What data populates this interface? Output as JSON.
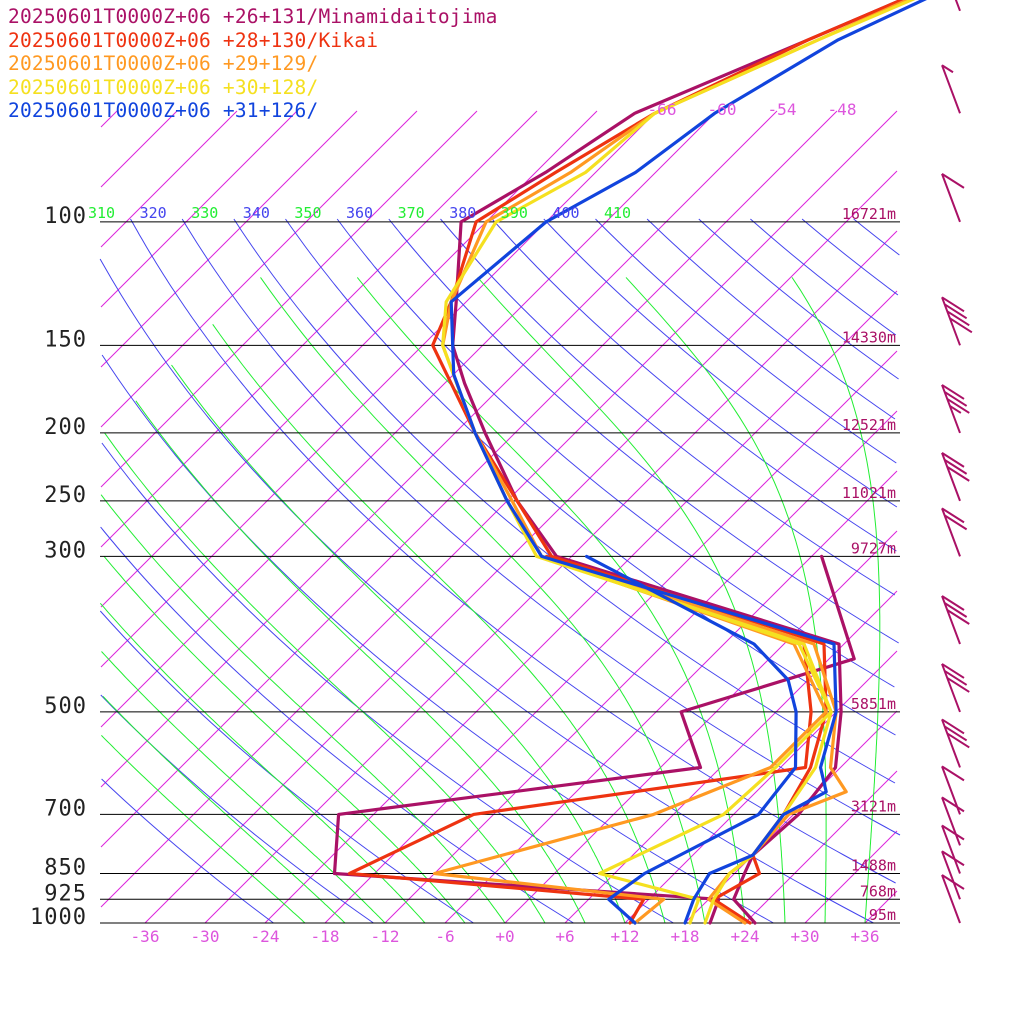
{
  "chart_data": {
    "type": "line",
    "legend_position": "top-left",
    "pressure_levels": [
      {
        "p": 100,
        "label": "100",
        "height": "16721m"
      },
      {
        "p": 150,
        "label": "150",
        "height": "14330m"
      },
      {
        "p": 200,
        "label": "200",
        "height": "12521m"
      },
      {
        "p": 250,
        "label": "250",
        "height": "11021m"
      },
      {
        "p": 300,
        "label": "300",
        "height": "9727m"
      },
      {
        "p": 500,
        "label": "500",
        "height": "5851m"
      },
      {
        "p": 700,
        "label": "700",
        "height": "3121m"
      },
      {
        "p": 850,
        "label": "850",
        "height": "1488m"
      },
      {
        "p": 925,
        "label": "925",
        "height": "768m"
      },
      {
        "p": 1000,
        "label": "1000",
        "height": "95m"
      }
    ],
    "temperature_ticks": [
      {
        "t": -36,
        "label": "-36"
      },
      {
        "t": -30,
        "label": "-30"
      },
      {
        "t": -24,
        "label": "-24"
      },
      {
        "t": -18,
        "label": "-18"
      },
      {
        "t": -12,
        "label": "-12"
      },
      {
        "t": -6,
        "label": "-6"
      },
      {
        "t": 0,
        "label": "+0"
      },
      {
        "t": 6,
        "label": "+6"
      },
      {
        "t": 12,
        "label": "+12"
      },
      {
        "t": 18,
        "label": "+18"
      },
      {
        "t": 24,
        "label": "+24"
      },
      {
        "t": 30,
        "label": "+30"
      },
      {
        "t": 36,
        "label": "+36"
      }
    ],
    "isotherm_top_labels": [
      {
        "t": -66,
        "label": "-66"
      },
      {
        "t": -60,
        "label": "-60"
      },
      {
        "t": -54,
        "label": "-54"
      },
      {
        "t": -48,
        "label": "-48"
      }
    ],
    "potential_temperature_labels": [
      {
        "theta": 310,
        "label": "310"
      },
      {
        "theta": 320,
        "label": "320"
      },
      {
        "theta": 330,
        "label": "330"
      },
      {
        "theta": 340,
        "label": "340"
      },
      {
        "theta": 350,
        "label": "350"
      },
      {
        "theta": 360,
        "label": "360"
      },
      {
        "theta": 370,
        "label": "370"
      },
      {
        "theta": 380,
        "label": "380"
      },
      {
        "theta": 390,
        "label": "390"
      },
      {
        "theta": 400,
        "label": "400"
      },
      {
        "theta": 410,
        "label": "410"
      }
    ],
    "series": [
      {
        "name": "20250601T0000Z+06 +26+131/Minamidaitojima",
        "color": "#aa1166",
        "temperature": [
          [
            1000,
            25.0
          ],
          [
            925,
            20.5
          ],
          [
            850,
            19.0
          ],
          [
            800,
            18.0
          ],
          [
            700,
            18.5
          ],
          [
            600,
            17.5
          ],
          [
            500,
            12.5
          ],
          [
            400,
            5.5
          ],
          [
            300,
            -31.5
          ],
          [
            250,
            -41.0
          ],
          [
            200,
            -51.0
          ],
          [
            170,
            -58.0
          ],
          [
            150,
            -63.0
          ],
          [
            130,
            -67.0
          ],
          [
            100,
            -74.5
          ],
          [
            85,
            -71.0
          ],
          [
            70,
            -68.0
          ],
          [
            55,
            -58.0
          ],
          [
            40,
            -45.0
          ]
        ],
        "dewpoint": [
          [
            1000,
            20.5
          ],
          [
            925,
            19.0
          ],
          [
            850,
            -22.0
          ],
          [
            700,
            -27.5
          ],
          [
            600,
            4.0
          ],
          [
            500,
            -3.5
          ],
          [
            420,
            8.5
          ],
          [
            300,
            -5.0
          ]
        ]
      },
      {
        "name": "20250601T0000Z+06 +28+130/Kikai",
        "color": "#ee3311",
        "temperature": [
          [
            1000,
            24.5
          ],
          [
            925,
            18.5
          ],
          [
            850,
            20.5
          ],
          [
            800,
            18.0
          ],
          [
            700,
            17.0
          ],
          [
            600,
            15.0
          ],
          [
            500,
            11.0
          ],
          [
            400,
            4.0
          ],
          [
            300,
            -32.0
          ],
          [
            250,
            -41.0
          ],
          [
            200,
            -52.0
          ],
          [
            150,
            -65.0
          ],
          [
            130,
            -67.5
          ],
          [
            100,
            -73.0
          ],
          [
            85,
            -70.0
          ],
          [
            70,
            -66.0
          ],
          [
            55,
            -58.0
          ],
          [
            40,
            -45.0
          ]
        ],
        "dewpoint": [
          [
            1000,
            12.5
          ],
          [
            925,
            11.5
          ],
          [
            850,
            -20.5
          ],
          [
            700,
            -14.0
          ],
          [
            600,
            14.5
          ],
          [
            500,
            9.5
          ],
          [
            400,
            2.0
          ],
          [
            300,
            -32.5
          ]
        ]
      },
      {
        "name": "20250601T0000Z+06 +29+129/",
        "color": "#ff9922",
        "temperature": [
          [
            1000,
            24.0
          ],
          [
            925,
            18.0
          ],
          [
            850,
            17.5
          ],
          [
            800,
            18.0
          ],
          [
            700,
            17.5
          ],
          [
            650,
            21.0
          ],
          [
            600,
            17.0
          ],
          [
            500,
            12.0
          ],
          [
            400,
            3.0
          ],
          [
            300,
            -33.0
          ],
          [
            250,
            -41.5
          ],
          [
            200,
            -52.0
          ],
          [
            150,
            -64.0
          ],
          [
            130,
            -67.5
          ],
          [
            100,
            -72.0
          ],
          [
            85,
            -68.5
          ],
          [
            70,
            -66.0
          ],
          [
            55,
            -57.0
          ],
          [
            40,
            -45.0
          ]
        ],
        "dewpoint": [
          [
            1000,
            13.0
          ],
          [
            925,
            13.5
          ],
          [
            850,
            -12.0
          ],
          [
            700,
            4.0
          ],
          [
            600,
            11.0
          ],
          [
            500,
            11.0
          ],
          [
            400,
            1.0
          ],
          [
            300,
            -33.0
          ]
        ]
      },
      {
        "name": "20250601T0000Z+06 +30+128/",
        "color": "#f5e020",
        "temperature": [
          [
            1000,
            20.0
          ],
          [
            925,
            18.5
          ],
          [
            850,
            17.5
          ],
          [
            800,
            18.0
          ],
          [
            700,
            17.0
          ],
          [
            600,
            15.5
          ],
          [
            500,
            11.5
          ],
          [
            400,
            2.0
          ],
          [
            300,
            -33.5
          ],
          [
            250,
            -42.0
          ],
          [
            200,
            -52.0
          ],
          [
            150,
            -64.0
          ],
          [
            130,
            -68.0
          ],
          [
            100,
            -71.0
          ],
          [
            85,
            -67.0
          ],
          [
            70,
            -66.0
          ],
          [
            55,
            -57.0
          ],
          [
            40,
            -44.0
          ]
        ],
        "dewpoint": [
          [
            1000,
            18.5
          ],
          [
            925,
            17.0
          ],
          [
            850,
            4.5
          ],
          [
            700,
            11.0
          ],
          [
            600,
            11.5
          ],
          [
            500,
            11.5
          ],
          [
            400,
            1.5
          ],
          [
            300,
            -33.0
          ]
        ]
      },
      {
        "name": "20250601T0000Z+06 +31+126/",
        "color": "#1144dd",
        "temperature": [
          [
            1000,
            18.0
          ],
          [
            925,
            16.5
          ],
          [
            850,
            15.5
          ],
          [
            800,
            18.0
          ],
          [
            700,
            17.0
          ],
          [
            650,
            19.0
          ],
          [
            600,
            16.0
          ],
          [
            500,
            12.0
          ],
          [
            400,
            5.0
          ],
          [
            300,
            -33.0
          ],
          [
            250,
            -42.0
          ],
          [
            200,
            -52.0
          ],
          [
            165,
            -60.0
          ],
          [
            150,
            -63.0
          ],
          [
            130,
            -67.5
          ],
          [
            100,
            -66.0
          ],
          [
            85,
            -62.0
          ],
          [
            70,
            -60.0
          ],
          [
            55,
            -55.0
          ],
          [
            40,
            -44.0
          ]
        ],
        "dewpoint": [
          [
            1000,
            13.0
          ],
          [
            925,
            8.0
          ],
          [
            850,
            9.0
          ],
          [
            700,
            14.5
          ],
          [
            600,
            13.5
          ],
          [
            500,
            8.0
          ],
          [
            450,
            4.0
          ],
          [
            400,
            -3.0
          ],
          [
            300,
            -28.5
          ]
        ]
      }
    ],
    "wind_barbs": [
      {
        "p": 1000,
        "speed_kt": 10
      },
      {
        "p": 925,
        "speed_kt": 10
      },
      {
        "p": 850,
        "speed_kt": 10
      },
      {
        "p": 775,
        "speed_kt": 10
      },
      {
        "p": 700,
        "speed_kt": 10
      },
      {
        "p": 600,
        "speed_kt": 30
      },
      {
        "p": 500,
        "speed_kt": 30
      },
      {
        "p": 400,
        "speed_kt": 30
      },
      {
        "p": 300,
        "speed_kt": 20
      },
      {
        "p": 250,
        "speed_kt": 30
      },
      {
        "p": 200,
        "speed_kt": 35
      },
      {
        "p": 150,
        "speed_kt": 40
      },
      {
        "p": 100,
        "speed_kt": 10
      },
      {
        "p": 70,
        "speed_kt": 5
      },
      {
        "p": 50,
        "speed_kt": 5
      }
    ],
    "colors": {
      "isotherm": "#dd22dd",
      "dry_adiabat": "#4444ee",
      "moist_adiabat": "#22ee33",
      "axis_label": "#dd55dd",
      "pressure_label": "#222222",
      "height_label": "#aa1166",
      "barb": "#aa1166",
      "potential_temperature_label_colors": [
        "#22ee33",
        "#4444ee"
      ]
    }
  }
}
